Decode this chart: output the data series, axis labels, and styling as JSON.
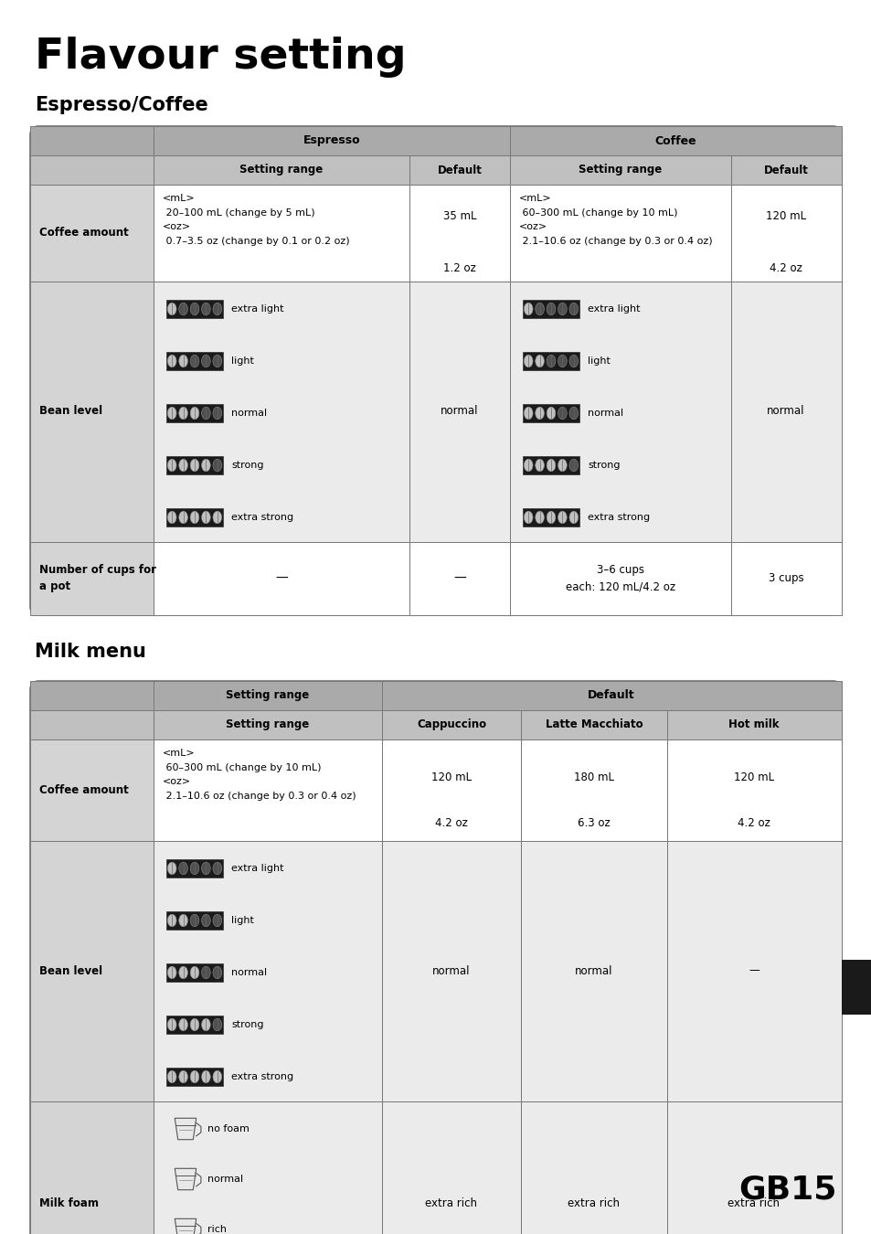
{
  "title": "Flavour setting",
  "section1_title": "Espresso/Coffee",
  "section2_title": "Milk menu",
  "page": "GB15",
  "bg_color": "#ffffff",
  "table_header_bg": "#aaaaaa",
  "table_subheader_bg": "#c0c0c0",
  "table_row_label_bg": "#d4d4d4",
  "table_cell_bg": "#ebebeb",
  "table_white_bg": "#ffffff",
  "bean_levels": [
    "extra light",
    "light",
    "normal",
    "strong",
    "extra strong"
  ],
  "bean_filled": [
    1,
    2,
    3,
    4,
    5
  ],
  "foam_levels": [
    "no foam",
    "normal",
    "rich",
    "extra rich"
  ]
}
